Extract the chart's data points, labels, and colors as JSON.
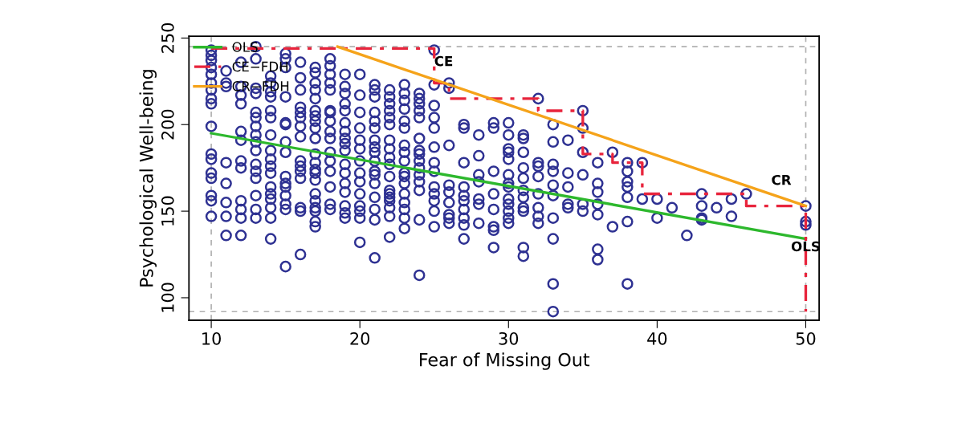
{
  "chart_data": {
    "type": "scatter",
    "xlabel": "Fear of Missing Out",
    "ylabel": "Psychological Well-being",
    "xlim": [
      8.5,
      50.9
    ],
    "ylim": [
      87,
      251
    ],
    "xticks": [
      10,
      20,
      30,
      40,
      50
    ],
    "yticks": [
      100,
      150,
      200,
      250
    ],
    "grid": false,
    "legend": "top left",
    "series": [
      {
        "color": "#2e3192",
        "marker": "circle",
        "x": [
          10,
          10,
          10,
          10,
          10,
          10,
          10,
          10,
          10,
          10,
          10,
          10,
          10,
          10,
          10,
          10,
          10,
          11,
          11,
          11,
          11,
          11,
          11,
          11,
          11,
          12,
          12,
          12,
          12,
          12,
          12,
          12,
          12,
          12,
          12,
          12,
          12,
          13,
          13,
          13,
          13,
          13,
          13,
          13,
          13,
          13,
          13,
          13,
          13,
          13,
          13,
          13,
          13,
          14,
          14,
          14,
          14,
          14,
          14,
          14,
          14,
          14,
          14,
          14,
          14,
          14,
          14,
          14,
          14,
          14,
          15,
          15,
          15,
          15,
          15,
          15,
          15,
          15,
          15,
          15,
          15,
          15,
          15,
          15,
          15,
          16,
          16,
          16,
          16,
          16,
          16,
          16,
          16,
          16,
          16,
          16,
          16,
          16,
          16,
          16,
          17,
          17,
          17,
          17,
          17,
          17,
          17,
          17,
          17,
          17,
          17,
          17,
          17,
          17,
          17,
          17,
          17,
          17,
          17,
          17,
          17,
          18,
          18,
          18,
          18,
          18,
          18,
          18,
          18,
          18,
          18,
          18,
          18,
          18,
          18,
          18,
          18,
          19,
          19,
          19,
          19,
          19,
          19,
          19,
          19,
          19,
          19,
          19,
          19,
          19,
          19,
          19,
          19,
          19,
          20,
          20,
          20,
          20,
          20,
          20,
          20,
          20,
          20,
          20,
          20,
          20,
          20,
          20,
          21,
          21,
          21,
          21,
          21,
          21,
          21,
          21,
          21,
          21,
          21,
          21,
          21,
          21,
          21,
          21,
          21,
          22,
          22,
          22,
          22,
          22,
          22,
          22,
          22,
          22,
          22,
          22,
          22,
          22,
          22,
          22,
          22,
          22,
          22,
          23,
          23,
          23,
          23,
          23,
          23,
          23,
          23,
          23,
          23,
          23,
          23,
          23,
          23,
          23,
          23,
          23,
          24,
          24,
          24,
          24,
          24,
          24,
          24,
          24,
          24,
          24,
          24,
          24,
          24,
          24,
          24,
          25,
          25,
          25,
          25,
          25,
          25,
          25,
          25,
          25,
          25,
          25,
          25,
          25,
          26,
          26,
          26,
          26,
          26,
          26,
          26,
          26,
          26,
          27,
          27,
          27,
          27,
          27,
          27,
          27,
          27,
          27,
          27,
          28,
          28,
          28,
          28,
          28,
          28,
          28,
          29,
          29,
          29,
          29,
          29,
          29,
          29,
          29,
          30,
          30,
          30,
          30,
          30,
          30,
          30,
          30,
          30,
          30,
          30,
          30,
          30,
          31,
          31,
          31,
          31,
          31,
          31,
          31,
          31,
          31,
          31,
          31,
          32,
          32,
          32,
          32,
          32,
          32,
          32,
          32,
          33,
          33,
          33,
          33,
          33,
          33,
          33,
          33,
          33,
          33,
          34,
          34,
          34,
          34,
          34,
          35,
          35,
          35,
          35,
          35,
          35,
          36,
          36,
          36,
          36,
          36,
          36,
          36,
          37,
          37,
          38,
          38,
          38,
          38,
          38,
          38,
          38,
          39,
          39,
          40,
          40,
          41,
          42,
          43,
          43,
          43,
          43,
          44,
          45,
          45,
          46,
          50,
          50,
          50
        ],
        "values": [
          243,
          240,
          237,
          233,
          229,
          224,
          220,
          215,
          212,
          199,
          183,
          180,
          172,
          169,
          159,
          156,
          147,
          231,
          224,
          222,
          178,
          166,
          155,
          147,
          136,
          236,
          222,
          217,
          212,
          196,
          191,
          179,
          175,
          156,
          151,
          146,
          136,
          245,
          238,
          221,
          218,
          207,
          204,
          199,
          194,
          190,
          185,
          177,
          173,
          169,
          159,
          151,
          146,
          228,
          224,
          219,
          216,
          208,
          204,
          194,
          185,
          180,
          176,
          172,
          164,
          160,
          157,
          152,
          146,
          134,
          241,
          238,
          233,
          216,
          201,
          200,
          190,
          184,
          170,
          166,
          164,
          159,
          154,
          151,
          118,
          236,
          227,
          220,
          210,
          207,
          204,
          199,
          193,
          179,
          176,
          173,
          169,
          152,
          150,
          125,
          233,
          230,
          224,
          220,
          215,
          208,
          205,
          202,
          198,
          192,
          183,
          178,
          174,
          172,
          168,
          160,
          156,
          152,
          150,
          144,
          141,
          238,
          234,
          229,
          224,
          220,
          208,
          207,
          202,
          196,
          192,
          184,
          179,
          173,
          164,
          154,
          151,
          229,
          222,
          218,
          212,
          208,
          201,
          196,
          192,
          189,
          185,
          177,
          172,
          166,
          161,
          153,
          149,
          146,
          229,
          217,
          207,
          198,
          191,
          186,
          179,
          172,
          167,
          160,
          153,
          150,
          146,
          132,
          223,
          220,
          216,
          207,
          202,
          198,
          191,
          187,
          184,
          179,
          173,
          171,
          166,
          158,
          151,
          145,
          123,
          220,
          216,
          212,
          208,
          204,
          200,
          191,
          186,
          181,
          177,
          170,
          162,
          160,
          158,
          156,
          152,
          147,
          135,
          223,
          218,
          214,
          209,
          202,
          198,
          188,
          184,
          179,
          172,
          170,
          166,
          160,
          155,
          151,
          146,
          140,
          218,
          215,
          212,
          208,
          204,
          192,
          185,
          183,
          179,
          175,
          171,
          167,
          162,
          145,
          113,
          243,
          223,
          211,
          204,
          198,
          187,
          178,
          173,
          164,
          160,
          156,
          150,
          141,
          224,
          221,
          188,
          165,
          161,
          155,
          148,
          146,
          143,
          200,
          198,
          178,
          164,
          159,
          156,
          151,
          146,
          142,
          134,
          194,
          182,
          171,
          167,
          157,
          154,
          143,
          201,
          198,
          173,
          160,
          151,
          141,
          139,
          129,
          201,
          194,
          186,
          184,
          180,
          171,
          166,
          164,
          157,
          154,
          150,
          146,
          143,
          194,
          192,
          184,
          175,
          169,
          162,
          158,
          152,
          150,
          129,
          124,
          215,
          178,
          176,
          170,
          160,
          152,
          147,
          143,
          200,
          190,
          177,
          173,
          165,
          159,
          146,
          134,
          108,
          92,
          191,
          172,
          164,
          154,
          152,
          208,
          198,
          184,
          171,
          154,
          150,
          178,
          166,
          161,
          154,
          148,
          128,
          122,
          184,
          141,
          178,
          173,
          167,
          164,
          158,
          144,
          108,
          178,
          157,
          157,
          146,
          152,
          136,
          160,
          153,
          146,
          145,
          152,
          157,
          147,
          160,
          153,
          144,
          142
        ]
      },
      {
        "type": "line",
        "name": "OLS",
        "color": "#2db82d",
        "x": [
          10,
          50
        ],
        "values": [
          195,
          134
        ]
      },
      {
        "type": "line",
        "name": "CE−FDH",
        "color": "#e8243c",
        "line_style": "dashdot",
        "x": [
          10,
          25,
          25,
          26,
          26,
          32,
          32,
          35,
          35,
          37,
          37,
          39,
          39,
          46,
          46,
          50,
          50
        ],
        "values": [
          244,
          244,
          224,
          224,
          215,
          215,
          208,
          208,
          183,
          183,
          178,
          178,
          160,
          160,
          153,
          153,
          92
        ]
      },
      {
        "type": "line",
        "name": "CR−FDH",
        "color": "#f5a31a",
        "x": [
          18.5,
          50
        ],
        "values": [
          245,
          153
        ]
      }
    ],
    "ref_lines": [
      {
        "axis": "x",
        "value": 10,
        "color": "#b0b0b0",
        "line_style": "dashed"
      },
      {
        "axis": "x",
        "value": 50,
        "color": "#b0b0b0",
        "line_style": "dashed"
      },
      {
        "axis": "y",
        "value": 245,
        "color": "#b0b0b0",
        "line_style": "dashed"
      },
      {
        "axis": "y",
        "value": 92,
        "color": "#b0b0b0",
        "line_style": "dashed"
      }
    ],
    "annotations": [
      {
        "text": "CE",
        "x": 25,
        "y": 236
      },
      "CR",
      {
        "text": "OLS",
        "x": 50,
        "y": 134
      }
    ]
  }
}
